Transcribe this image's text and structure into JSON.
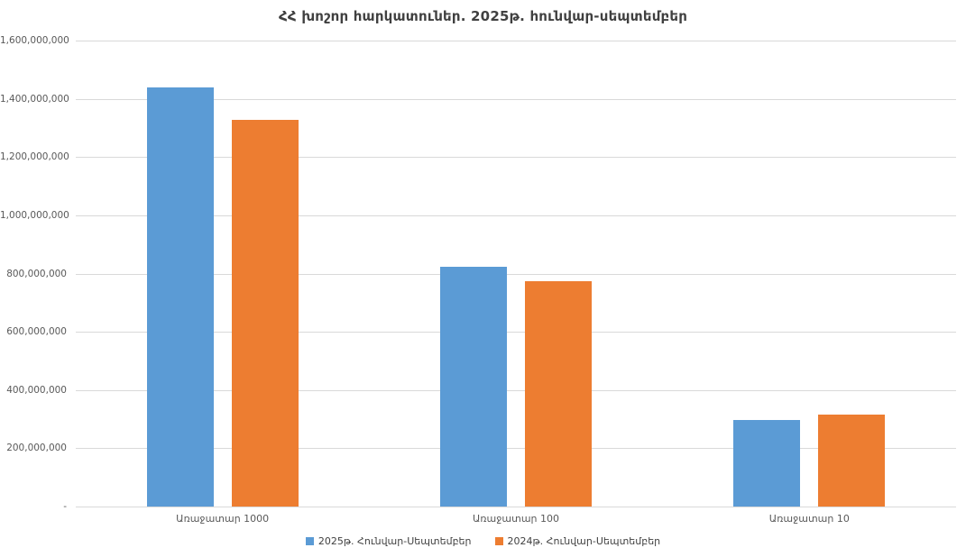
{
  "chart_data": {
    "type": "bar",
    "title": "ՀՀ խոշոր հարկատուներ. 2025թ. հունվար-սեպտեմբեր",
    "categories": [
      "Առաջատար 1000",
      "Առաջատար 100",
      "Առաջատար 10"
    ],
    "series": [
      {
        "name": "2025թ. Հունվար-Սեպտեմբեր",
        "color": "#5B9BD5",
        "values": [
          1440000000,
          824000000,
          296000000
        ]
      },
      {
        "name": "2024թ. Հունվար-Սեպտեմբեր",
        "color": "#ED7D31",
        "values": [
          1327000000,
          774000000,
          316000000
        ]
      }
    ],
    "ylim": [
      0,
      1600000000
    ],
    "ytick_step": 200000000,
    "ytick_labels": [
      "-",
      "200,000,000",
      "400,000,000",
      "600,000,000",
      "800,000,000",
      "1,000,000,000",
      "1,200,000,000",
      "1,400,000,000",
      "1,600,000,000"
    ],
    "xlabel": "",
    "ylabel": "",
    "grid": true,
    "legend_position": "bottom"
  },
  "colors": {
    "background": "#FFFFFF",
    "gridline": "#D9D9D9",
    "axis_text": "#595959",
    "title_text": "#404040",
    "series_2025": "#5B9BD5",
    "series_2024": "#ED7D31"
  }
}
